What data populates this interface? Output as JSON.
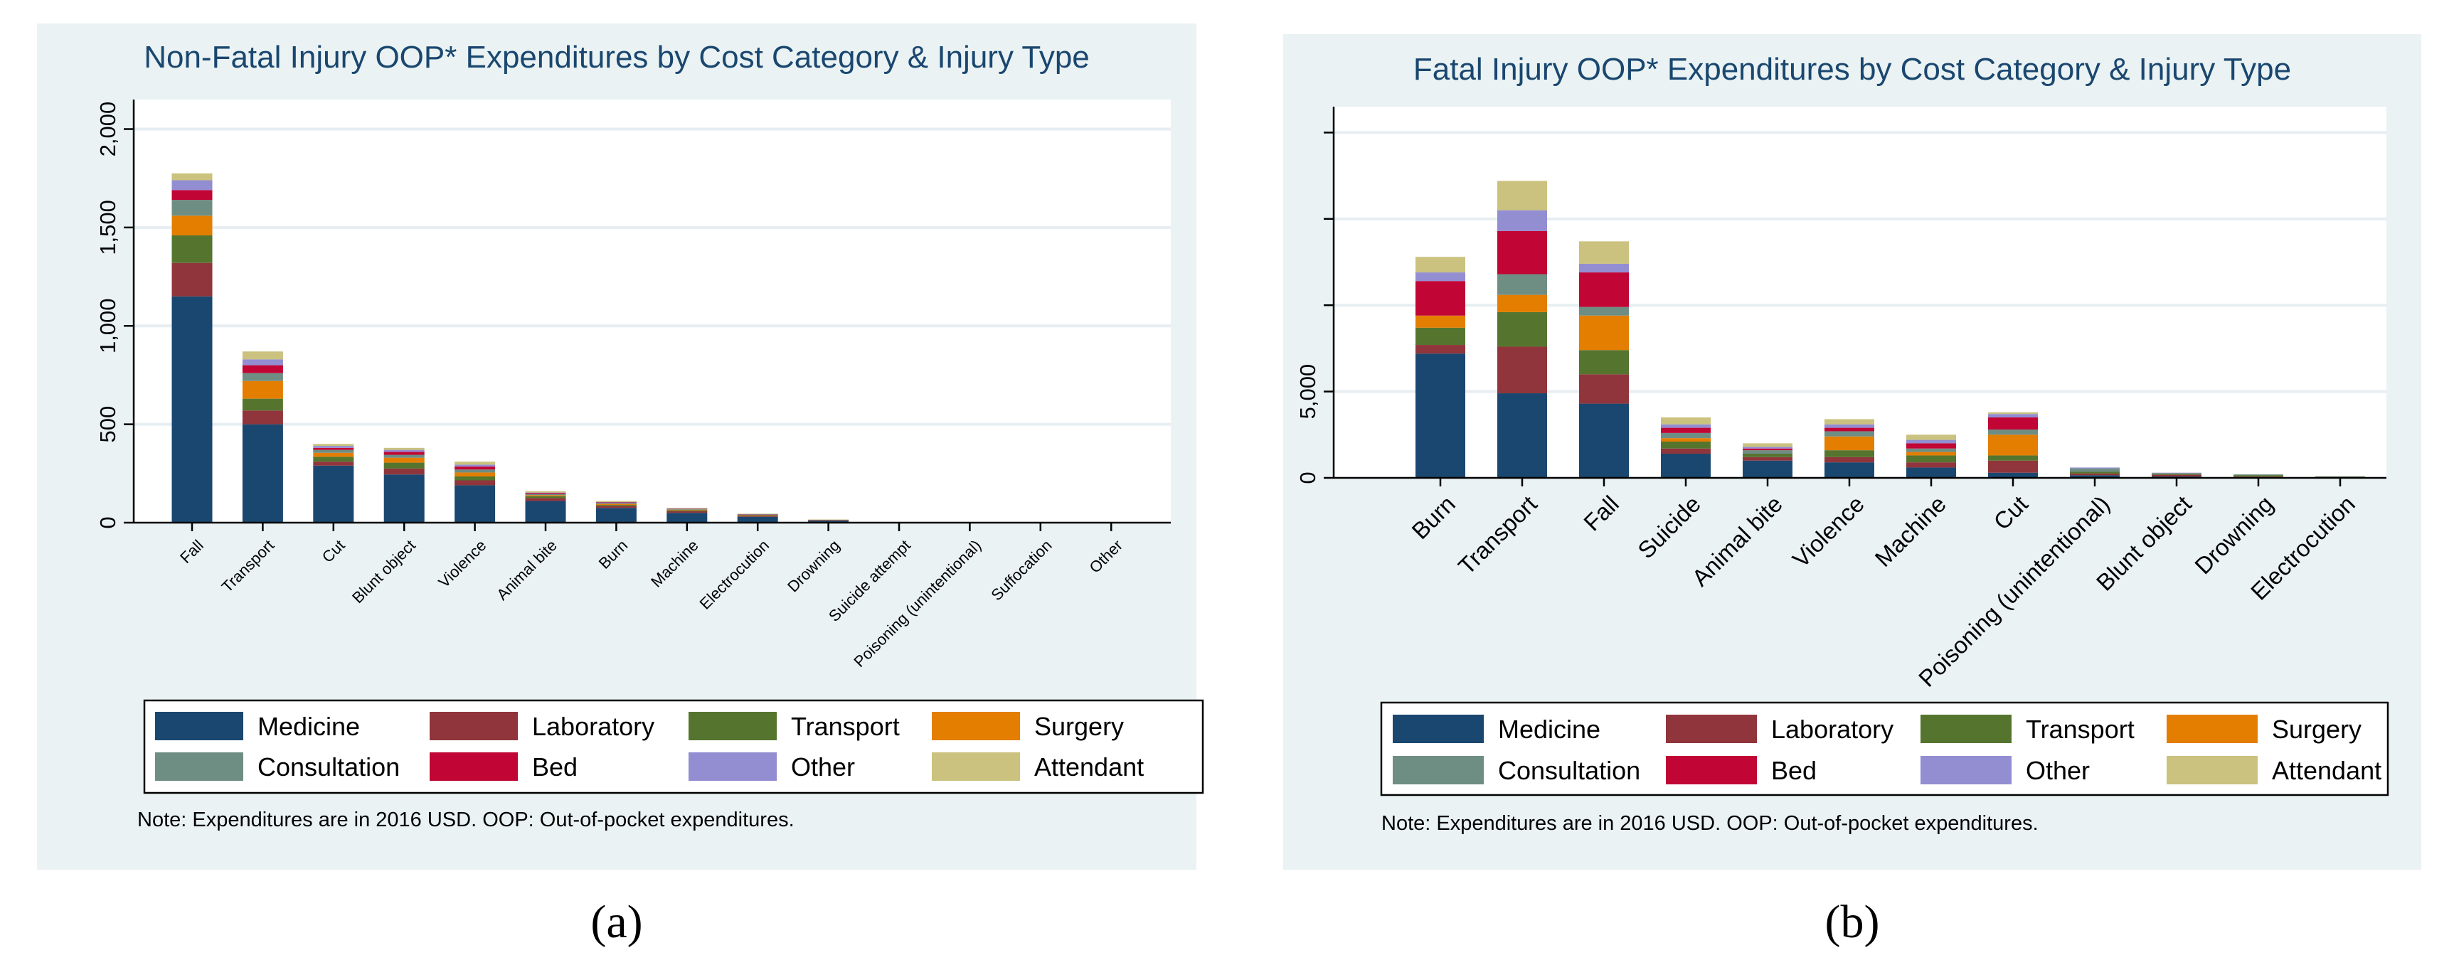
{
  "colors": {
    "panel_bg": "#eaf2f3",
    "plot_bg": "#ffffff",
    "grid": "#e6eef2",
    "axis": "#000000",
    "text": "#000000",
    "title": "#1a476f"
  },
  "panel_labels": [
    "(a)",
    "(b)"
  ],
  "chart_data": [
    {
      "type": "bar",
      "stacked": true,
      "title": "Non-Fatal Injury OOP* Expenditures by Cost Category & Injury Type",
      "xlabel": "",
      "ylabel": "",
      "ylim": [
        0,
        2150
      ],
      "yticks": [
        0,
        500,
        1000,
        1500,
        2000
      ],
      "ytick_labels": [
        "0",
        "500",
        "1,000",
        "1,500",
        "2,000"
      ],
      "grid": true,
      "note": "Note: Expenditures are in 2016 USD. OOP: Out-of-pocket  expenditures.",
      "legend_position": "bottom",
      "categories": [
        "Fall",
        "Transport",
        "Cut",
        "Blunt object",
        "Violence",
        "Animal bite",
        "Burn",
        "Machine",
        "Electrocution",
        "Drowning",
        "Suicide attempt",
        "Poisoning (unintentional)",
        "Suffocation",
        "Other"
      ],
      "series": [
        {
          "name": "Medicine",
          "color": "#1a476f",
          "values": [
            1150,
            500,
            290,
            245,
            190,
            110,
            75,
            50,
            30,
            10,
            3,
            3,
            2,
            2
          ]
        },
        {
          "name": "Laboratory",
          "color": "#90353b",
          "values": [
            170,
            70,
            20,
            30,
            25,
            15,
            10,
            8,
            5,
            2,
            0,
            0,
            0,
            0
          ]
        },
        {
          "name": "Transport",
          "color": "#55752f",
          "values": [
            140,
            60,
            25,
            30,
            20,
            10,
            5,
            5,
            3,
            1,
            0,
            0,
            0,
            0
          ]
        },
        {
          "name": "Surgery",
          "color": "#e37e00",
          "values": [
            100,
            90,
            20,
            25,
            20,
            5,
            5,
            3,
            2,
            0,
            0,
            0,
            0,
            0
          ]
        },
        {
          "name": "Consultation",
          "color": "#6e8e84",
          "values": [
            80,
            40,
            15,
            15,
            15,
            5,
            5,
            3,
            2,
            1,
            0,
            0,
            0,
            0
          ]
        },
        {
          "name": "Bed",
          "color": "#c10534",
          "values": [
            50,
            40,
            10,
            15,
            15,
            5,
            3,
            2,
            1,
            1,
            0,
            0,
            0,
            0
          ]
        },
        {
          "name": "Other",
          "color": "#938dd2",
          "values": [
            50,
            30,
            10,
            10,
            10,
            3,
            2,
            1,
            1,
            0,
            0,
            0,
            0,
            0
          ]
        },
        {
          "name": "Attendant",
          "color": "#cac27e",
          "values": [
            35,
            40,
            10,
            10,
            15,
            7,
            5,
            3,
            2,
            1,
            0,
            0,
            0,
            0
          ]
        }
      ]
    },
    {
      "type": "bar",
      "stacked": true,
      "title": "Fatal Injury OOP* Expenditures by Cost Category & Injury Type",
      "xlabel": "",
      "ylabel": "",
      "ylim": [
        0,
        21500
      ],
      "yticks": [
        0,
        5000,
        10000,
        15000,
        20000
      ],
      "ytick_labels": [
        "0",
        "5,000",
        "",
        "",
        ""
      ],
      "grid": true,
      "note": "Note: Expenditures are in 2016 USD. OOP: Out-of-pocket expenditures.",
      "legend_position": "bottom",
      "categories": [
        "Burn",
        "Transport",
        "Fall",
        "Suicide",
        "Animal bite",
        "Violence",
        "Machine",
        "Cut",
        "Poisoning (unintentional)",
        "Blunt object",
        "Drowning",
        "Electrocution"
      ],
      "series": [
        {
          "name": "Medicine",
          "color": "#1a476f",
          "values": [
            7200,
            4900,
            4300,
            1400,
            1000,
            900,
            600,
            300,
            150,
            80,
            50,
            30
          ]
        },
        {
          "name": "Laboratory",
          "color": "#90353b",
          "values": [
            500,
            2700,
            1700,
            300,
            200,
            300,
            300,
            700,
            100,
            100,
            30,
            20
          ]
        },
        {
          "name": "Transport",
          "color": "#55752f",
          "values": [
            1000,
            2000,
            1400,
            400,
            200,
            400,
            400,
            300,
            100,
            50,
            80,
            30
          ]
        },
        {
          "name": "Surgery",
          "color": "#e37e00",
          "values": [
            700,
            1000,
            2000,
            200,
            0,
            800,
            200,
            1200,
            0,
            0,
            0,
            0
          ]
        },
        {
          "name": "Consultation",
          "color": "#6e8e84",
          "values": [
            0,
            1200,
            500,
            300,
            200,
            300,
            200,
            300,
            200,
            50,
            40,
            10
          ]
        },
        {
          "name": "Bed",
          "color": "#c10534",
          "values": [
            2000,
            2500,
            2000,
            300,
            100,
            200,
            300,
            700,
            0,
            0,
            0,
            0
          ]
        },
        {
          "name": "Other",
          "color": "#938dd2",
          "values": [
            500,
            1200,
            500,
            200,
            100,
            200,
            200,
            200,
            50,
            20,
            0,
            0
          ]
        },
        {
          "name": "Attendant",
          "color": "#cac27e",
          "values": [
            900,
            1700,
            1300,
            400,
            200,
            300,
            300,
            100,
            0,
            0,
            0,
            0
          ]
        }
      ]
    }
  ]
}
